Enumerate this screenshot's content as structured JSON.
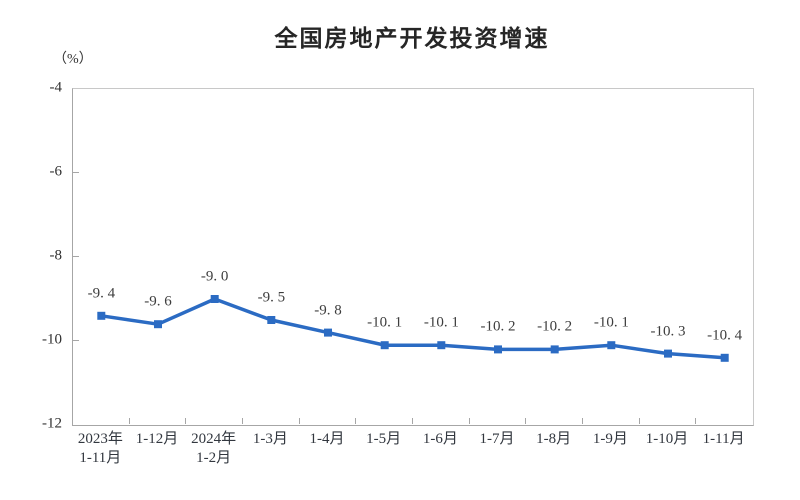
{
  "header": {
    "title": "全国房地产开发投资增速",
    "unit_label": "（%）"
  },
  "chart_data": {
    "type": "line",
    "title": "全国房地产开发投资增速",
    "unit": "（%）",
    "categories": [
      "2023年\n1-11月",
      "1-12月",
      "2024年\n1-2月",
      "1-3月",
      "1-4月",
      "1-5月",
      "1-6月",
      "1-7月",
      "1-8月",
      "1-9月",
      "1-10月",
      "1-11月"
    ],
    "values": [
      -9.4,
      -9.6,
      -9.0,
      -9.5,
      -9.8,
      -10.1,
      -10.1,
      -10.2,
      -10.2,
      -10.1,
      -10.3,
      -10.4
    ],
    "point_labels": [
      "-9. 4",
      "-9. 6",
      "-9. 0",
      "-9. 5",
      "-9. 8",
      "-10. 1",
      "-10. 1",
      "-10. 2",
      "-10. 2",
      "-10. 1",
      "-10. 3",
      "-10. 4"
    ],
    "xlabel": "",
    "ylabel": "（%）",
    "ylim": [
      -12,
      -4
    ],
    "y_ticks": [
      -4,
      -6,
      -8,
      -10,
      -12
    ],
    "y_tick_labels": [
      "-4",
      "-6",
      "-8",
      "-10",
      "-12"
    ],
    "grid": false,
    "legend_position": "none",
    "line_color": "#2b6bc3",
    "marker": "square",
    "label_color": "#3d3d3d",
    "axis_color": "#a6a6a6"
  }
}
